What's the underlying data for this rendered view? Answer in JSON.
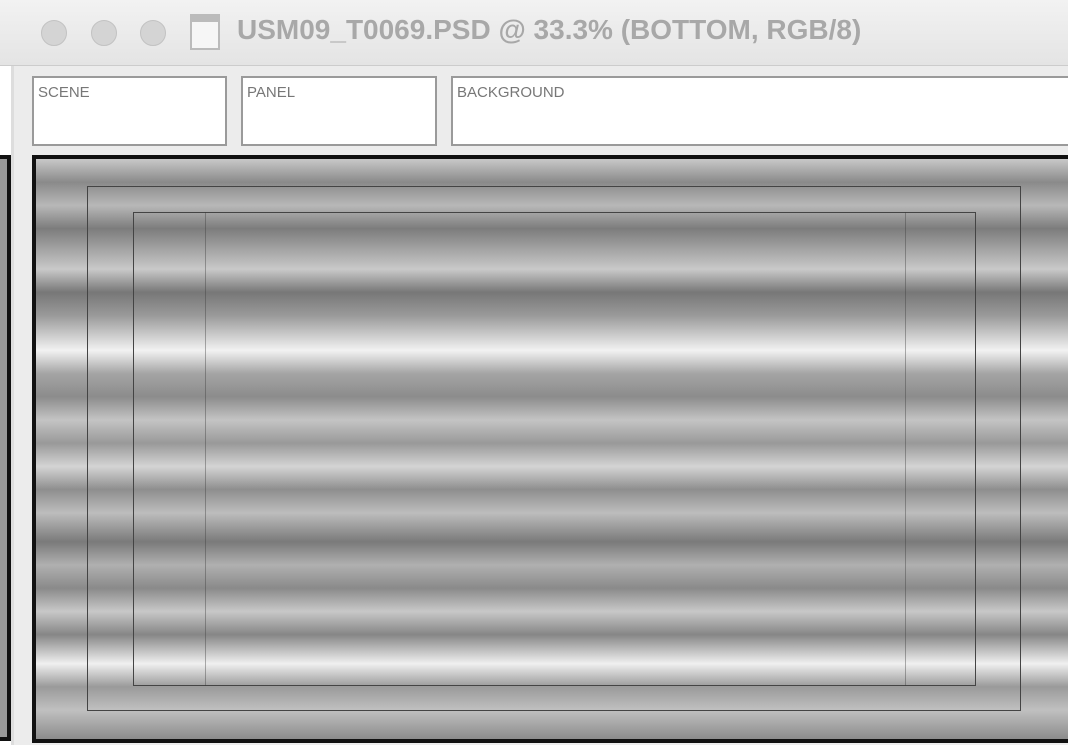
{
  "window": {
    "title": "USM09_T0069.PSD @ 33.3% (BOTTOM, RGB/8)"
  },
  "fields": [
    {
      "label": "SCENE"
    },
    {
      "label": "PANEL"
    },
    {
      "label": "BACKGROUND"
    }
  ]
}
